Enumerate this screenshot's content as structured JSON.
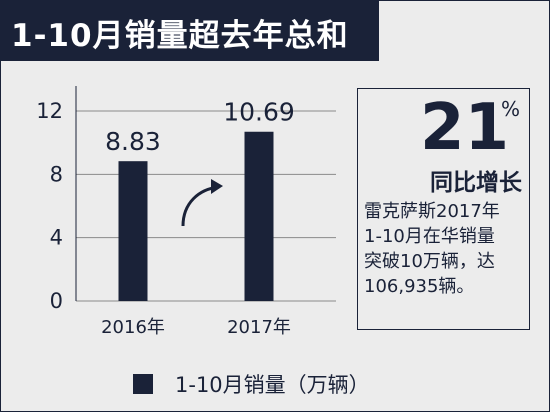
{
  "title": "1-10月销量超去年总和",
  "infobox": {
    "growth_value": "21",
    "growth_unit": "%",
    "growth_label": "同比增长",
    "description_lines": [
      "雷克萨斯2017年",
      "1-10月在华销量",
      "突破10万辆，达",
      "106,935辆。"
    ]
  },
  "chart_data": {
    "type": "bar",
    "categories": [
      "2016年",
      "2017年"
    ],
    "values": [
      8.83,
      10.69
    ],
    "value_labels": [
      "8.83",
      "10.69"
    ],
    "ylim": [
      0,
      12
    ],
    "yticks": [
      0,
      4,
      8,
      12
    ],
    "legend": "1-10月销量（万辆）",
    "legend_position": "bottom",
    "grid": true,
    "bar_color": "#1a2238"
  }
}
